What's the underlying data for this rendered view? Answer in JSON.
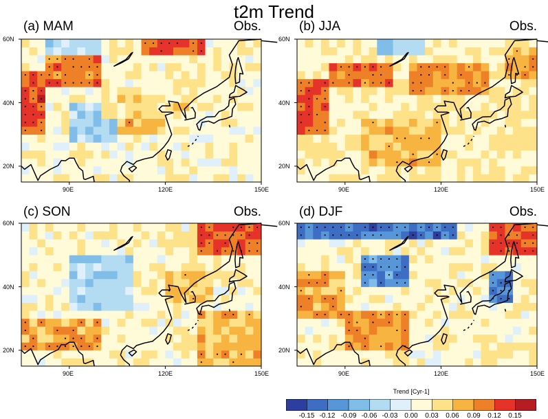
{
  "title": "t2m Trend",
  "colorbar": {
    "title": "Trend [Cyr-1]",
    "colors": [
      "#2c3f9e",
      "#3e6ec4",
      "#5796d8",
      "#80bde8",
      "#b3dcf3",
      "#dff0fa",
      "#fffad8",
      "#fde28a",
      "#f7b440",
      "#ee8127",
      "#e6332a",
      "#b51d22"
    ],
    "ticks": [
      "-0.15",
      "-0.12",
      "-0.09",
      "-0.06",
      "-0.03",
      "0.00",
      "0.03",
      "0.06",
      "0.09",
      "0.12",
      "0.15"
    ]
  },
  "axes": {
    "x_ticks": [
      "90E",
      "120E",
      "150E"
    ],
    "y_ticks": [
      "60N",
      "40N",
      "20N"
    ]
  },
  "panels": [
    {
      "label": "(a) MAM",
      "tag": "Obs."
    },
    {
      "label": "(b) JJA",
      "tag": "Obs."
    },
    {
      "label": "(c) SON",
      "tag": "Obs."
    },
    {
      "label": "(d) DJF",
      "tag": "Obs."
    }
  ],
  "chart_data": {
    "type": "heatmap",
    "title": "t2m Trend",
    "colorbar_label": "Trend [Cyr-1]",
    "color_levels": [
      -0.15,
      -0.12,
      -0.09,
      -0.06,
      -0.03,
      0.0,
      0.03,
      0.06,
      0.09,
      0.12,
      0.15
    ],
    "lon_range": [
      75,
      150
    ],
    "lat_range": [
      15,
      60
    ],
    "x_ticks": [
      90,
      120,
      150
    ],
    "y_ticks": [
      20,
      40,
      60
    ],
    "panels": [
      {
        "name": "(a) MAM",
        "dataset": "Obs.",
        "trend_regions": [
          {
            "lon": [
              75,
              82
            ],
            "lat": [
              30,
              50
            ],
            "value": 0.13
          },
          {
            "lon": [
              82,
              100
            ],
            "lat": [
              43,
              55
            ],
            "value": 0.11
          },
          {
            "lon": [
              112,
              132
            ],
            "lat": [
              54,
              60
            ],
            "value": 0.13
          },
          {
            "lon": [
              90,
              103
            ],
            "lat": [
              26,
              38
            ],
            "value": -0.05
          },
          {
            "lon": [
              82,
              98
            ],
            "lat": [
              55,
              60
            ],
            "value": -0.04
          },
          {
            "lon": [
              105,
              120
            ],
            "lat": [
              28,
              34
            ],
            "value": 0.07
          },
          {
            "lon": [
              100,
              130
            ],
            "lat": [
              35,
              45
            ],
            "value": 0.04
          }
        ],
        "default_value": 0.02
      },
      {
        "name": "(b) JJA",
        "dataset": "Obs.",
        "trend_regions": [
          {
            "lon": [
              75,
              85
            ],
            "lat": [
              30,
              46
            ],
            "value": 0.12
          },
          {
            "lon": [
              85,
              105
            ],
            "lat": [
              44,
              52
            ],
            "value": 0.11
          },
          {
            "lon": [
              110,
              135
            ],
            "lat": [
              42,
              52
            ],
            "value": 0.09
          },
          {
            "lon": [
              95,
              120
            ],
            "lat": [
              20,
              33
            ],
            "value": 0.07
          },
          {
            "lon": [
              100,
              115
            ],
            "lat": [
              54,
              60
            ],
            "value": -0.06
          },
          {
            "lon": [
              140,
              150
            ],
            "lat": [
              46,
              56
            ],
            "value": 0.08
          }
        ],
        "default_value": 0.03
      },
      {
        "name": "(c) SON",
        "dataset": "Obs.",
        "trend_regions": [
          {
            "lon": [
              130,
              150
            ],
            "lat": [
              48,
              60
            ],
            "value": 0.12
          },
          {
            "lon": [
              90,
              110
            ],
            "lat": [
              32,
              48
            ],
            "value": -0.05
          },
          {
            "lon": [
              75,
              100
            ],
            "lat": [
              18,
              30
            ],
            "value": 0.08
          },
          {
            "lon": [
              130,
              150
            ],
            "lat": [
              15,
              32
            ],
            "value": 0.07
          },
          {
            "lon": [
              120,
              135
            ],
            "lat": [
              35,
              45
            ],
            "value": 0.06
          }
        ],
        "default_value": 0.02
      },
      {
        "name": "(d) DJF",
        "dataset": "Obs.",
        "trend_regions": [
          {
            "lon": [
              75,
              125
            ],
            "lat": [
              53,
              60
            ],
            "value": -0.13
          },
          {
            "lon": [
              95,
              110
            ],
            "lat": [
              38,
              48
            ],
            "value": -0.11
          },
          {
            "lon": [
              133,
              142
            ],
            "lat": [
              33,
              45
            ],
            "value": -0.12
          },
          {
            "lon": [
              135,
              150
            ],
            "lat": [
              48,
              58
            ],
            "value": 0.13
          },
          {
            "lon": [
              90,
              110
            ],
            "lat": [
              18,
              32
            ],
            "value": 0.09
          },
          {
            "lon": [
              75,
              88
            ],
            "lat": [
              30,
              45
            ],
            "value": 0.08
          }
        ],
        "default_value": 0.02
      }
    ]
  }
}
